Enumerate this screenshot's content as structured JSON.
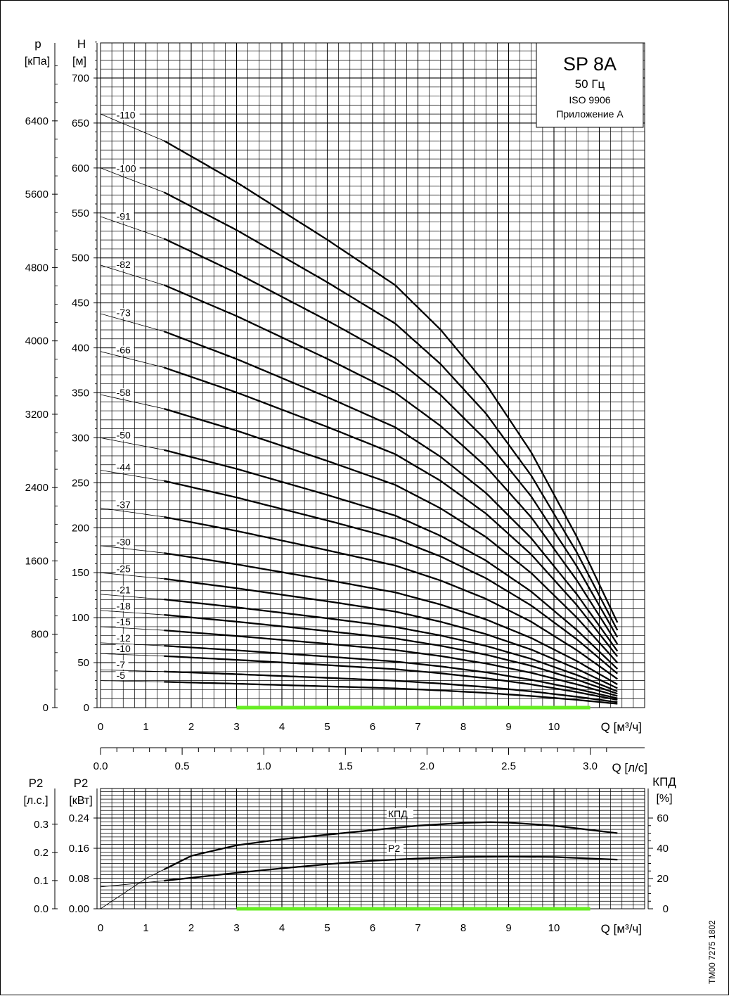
{
  "doc_code": "TM00 7275 1802",
  "title_box": {
    "model": "SP 8A",
    "freq": "50 Гц",
    "standard": "ISO 9906",
    "annex": "Приложение A"
  },
  "colors": {
    "ink": "#000000",
    "operating_range": "#66ee22"
  },
  "chart_data": [
    {
      "type": "line",
      "id": "head",
      "grid": true,
      "axes": {
        "x": {
          "label": "Q [м³/ч]",
          "range": [
            0,
            11.5
          ],
          "ticks": [
            "0",
            "1",
            "2",
            "3",
            "4",
            "5",
            "6",
            "7",
            "8",
            "9",
            "10"
          ],
          "tick_values": [
            0,
            1,
            2,
            3,
            4,
            5,
            6,
            7,
            8,
            9,
            10
          ]
        },
        "x2": {
          "label": "Q [л/с]",
          "range": [
            0,
            3.194
          ],
          "ticks": [
            "0.0",
            "0.5",
            "1.0",
            "1.5",
            "2.0",
            "2.5",
            "3.0"
          ],
          "tick_values": [
            0,
            0.5,
            1.0,
            1.5,
            2.0,
            2.5,
            3.0
          ]
        },
        "y": {
          "label_top": "H",
          "label_unit": "[м]",
          "range": [
            0,
            740
          ],
          "ticks": [
            "0",
            "50",
            "100",
            "150",
            "200",
            "250",
            "300",
            "350",
            "400",
            "450",
            "500",
            "550",
            "600",
            "650",
            "700"
          ],
          "tick_values": [
            0,
            50,
            100,
            150,
            200,
            250,
            300,
            350,
            400,
            450,
            500,
            550,
            600,
            650,
            700
          ]
        },
        "y2": {
          "label_top": "p",
          "label_unit": "[кПа]",
          "ticks": [
            "0",
            "800",
            "1600",
            "2400",
            "3200",
            "4000",
            "4800",
            "5600",
            "6400"
          ],
          "tick_values": [
            0,
            800,
            1600,
            2400,
            3200,
            4000,
            4800,
            5600,
            6400
          ]
        }
      },
      "operating_range": [
        3.0,
        10.8
      ],
      "curve_shape": {
        "q": [
          0,
          1.4,
          3,
          5,
          6.5,
          7.5,
          8.5,
          9.5,
          10.5,
          11.4
        ],
        "h_per_stage": [
          6.0,
          5.73,
          5.31,
          4.73,
          4.27,
          3.82,
          3.27,
          2.58,
          1.73,
          0.86
        ]
      },
      "series": [
        {
          "label": "-110",
          "stages": 110
        },
        {
          "label": "-100",
          "stages": 100
        },
        {
          "label": "-91",
          "stages": 91
        },
        {
          "label": "-82",
          "stages": 82
        },
        {
          "label": "-73",
          "stages": 73
        },
        {
          "label": "-66",
          "stages": 66
        },
        {
          "label": "-58",
          "stages": 58
        },
        {
          "label": "-50",
          "stages": 50
        },
        {
          "label": "-44",
          "stages": 44
        },
        {
          "label": "-37",
          "stages": 37
        },
        {
          "label": "-30",
          "stages": 30
        },
        {
          "label": "-25",
          "stages": 25
        },
        {
          "label": "-21",
          "stages": 21
        },
        {
          "label": "-18",
          "stages": 18
        },
        {
          "label": "-15",
          "stages": 15
        },
        {
          "label": "-12",
          "stages": 12
        },
        {
          "label": "-10",
          "stages": 10
        },
        {
          "label": "-7",
          "stages": 7
        },
        {
          "label": "-5",
          "stages": 5
        }
      ]
    },
    {
      "type": "line",
      "id": "power",
      "grid": true,
      "axes": {
        "x": {
          "label": "Q [м³/ч]",
          "range": [
            0,
            11.5
          ],
          "ticks": [
            "0",
            "1",
            "2",
            "3",
            "4",
            "5",
            "6",
            "7",
            "8",
            "9",
            "10"
          ],
          "tick_values": [
            0,
            1,
            2,
            3,
            4,
            5,
            6,
            7,
            8,
            9,
            10
          ]
        },
        "y_kw": {
          "label_top": "P2",
          "label_unit": "[кВт]",
          "range": [
            0,
            0.2584
          ],
          "ticks": [
            "0.00",
            "0.08",
            "0.16",
            "0.24"
          ],
          "tick_values": [
            0,
            0.08,
            0.16,
            0.24
          ]
        },
        "y_hp": {
          "label_top": "P2",
          "label_unit": "[л.с.]",
          "ticks": [
            "0.0",
            "0.1",
            "0.2",
            "0.3"
          ],
          "tick_values": [
            0,
            0.1,
            0.2,
            0.3
          ]
        },
        "y_eff": {
          "label_top": "КПД",
          "label_unit": "[%]",
          "range": [
            0,
            64.6
          ],
          "ticks": [
            "0",
            "20",
            "40",
            "60"
          ],
          "tick_values": [
            0,
            20,
            40,
            60
          ]
        }
      },
      "operating_range": [
        3.0,
        10.8
      ],
      "series": [
        {
          "name": "КПД",
          "unit": "%",
          "x": [
            0,
            0.5,
            1,
            1.4,
            2,
            3,
            4,
            5,
            6,
            7,
            8,
            8.6,
            9,
            10,
            11.4
          ],
          "y": [
            0,
            10,
            20,
            26,
            35,
            42,
            46,
            49,
            52,
            55,
            56.8,
            57.3,
            57,
            55,
            50
          ],
          "thin_until": 1.4
        },
        {
          "name": "P2",
          "unit": "кВт",
          "x": [
            0,
            1.4,
            3,
            4,
            5,
            6,
            7,
            8,
            9,
            10,
            11.4
          ],
          "y": [
            0.058,
            0.074,
            0.095,
            0.107,
            0.118,
            0.127,
            0.133,
            0.137,
            0.138,
            0.137,
            0.13
          ],
          "thin_until": 1.4
        }
      ]
    }
  ]
}
